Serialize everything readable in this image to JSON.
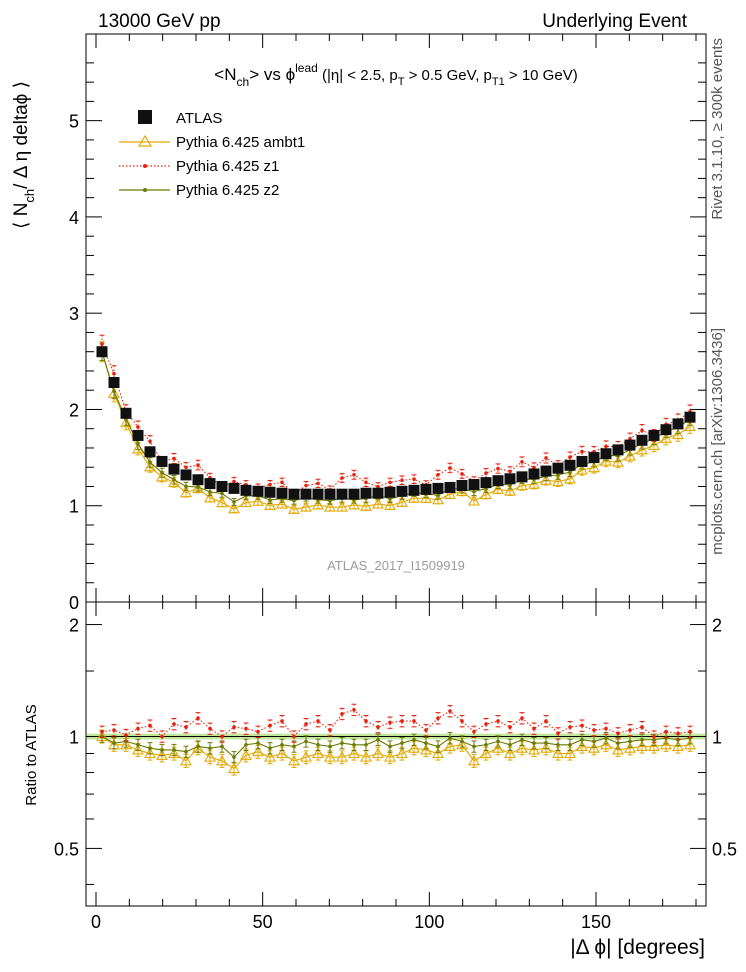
{
  "header": {
    "left": "13000 GeV pp",
    "right": "Underlying Event"
  },
  "side": {
    "top": "Rivet 3.1.10, ≥ 300k events",
    "bottom": "mcplots.cern.ch [arXiv:1306.3436]"
  },
  "chart_data": {
    "type": "scatter",
    "title_main": "<N",
    "title_ch": "ch",
    "title_vs": "> vs ϕ",
    "title_lead": "lead",
    "title_cuts1": " (|η| < 2.5, p",
    "title_T": "T",
    "title_cuts2": " > 0.5 GeV, p",
    "title_T1": "T1",
    "title_cuts3": " > 10 GeV)",
    "watermark": "ATLAS_2017_I1509919",
    "xlabel": "|Δ ϕ| [degrees]",
    "ylabel_main": "⟨ N",
    "ylabel_sub": "ch",
    "ylabel_rest": "/ Δ η deltaϕ ⟩",
    "ratio_ylabel": "Ratio to ATLAS",
    "xlim": [
      -3,
      183
    ],
    "ylim": [
      0,
      5.9
    ],
    "ratio_ylim": [
      0.35,
      2.3
    ],
    "x_ticks": [
      "0",
      "50",
      "100",
      "150"
    ],
    "y_ticks": [
      "0",
      "1",
      "2",
      "3",
      "4",
      "5"
    ],
    "ratio_ticks": [
      "0.5",
      "1",
      "2"
    ],
    "legend": [
      "ATLAS",
      "Pythia 6.425 ambt1",
      "Pythia 6.425 z1",
      "Pythia 6.425 z2"
    ],
    "x": [
      1.8,
      5.4,
      9,
      12.6,
      16.2,
      19.8,
      23.4,
      27,
      30.6,
      34.2,
      37.8,
      41.4,
      45,
      48.6,
      52.2,
      55.8,
      59.4,
      63,
      66.6,
      70.2,
      73.8,
      77.4,
      81,
      84.6,
      88.2,
      91.8,
      95.4,
      99,
      102.6,
      106.2,
      109.8,
      113.4,
      117,
      120.6,
      124.2,
      127.8,
      131.4,
      135,
      138.6,
      142.2,
      145.8,
      149.4,
      153,
      156.6,
      160.2,
      163.8,
      167.4,
      171,
      174.6,
      178.2
    ],
    "atlas": [
      2.6,
      2.28,
      1.96,
      1.73,
      1.56,
      1.46,
      1.38,
      1.32,
      1.27,
      1.23,
      1.2,
      1.18,
      1.16,
      1.15,
      1.14,
      1.13,
      1.12,
      1.12,
      1.12,
      1.12,
      1.12,
      1.12,
      1.13,
      1.13,
      1.14,
      1.15,
      1.16,
      1.17,
      1.18,
      1.19,
      1.21,
      1.22,
      1.24,
      1.26,
      1.28,
      1.3,
      1.33,
      1.36,
      1.39,
      1.42,
      1.46,
      1.5,
      1.54,
      1.58,
      1.63,
      1.68,
      1.73,
      1.79,
      1.85,
      1.92
    ],
    "series": [
      {
        "name": "Pythia 6.425 ambt1",
        "color": "#e3a800",
        "ratio": [
          1.0,
          0.95,
          0.95,
          0.92,
          0.9,
          0.89,
          0.9,
          0.86,
          0.93,
          0.88,
          0.86,
          0.82,
          0.89,
          0.91,
          0.88,
          0.9,
          0.86,
          0.88,
          0.9,
          0.88,
          0.88,
          0.9,
          0.88,
          0.9,
          0.88,
          0.9,
          0.93,
          0.92,
          0.9,
          0.94,
          0.95,
          0.86,
          0.9,
          0.93,
          0.9,
          0.93,
          0.92,
          0.93,
          0.9,
          0.9,
          0.94,
          0.93,
          0.95,
          0.92,
          0.93,
          0.94,
          0.94,
          0.95,
          0.94,
          0.95
        ]
      },
      {
        "name": "Pythia 6.425 z1",
        "color": "#e8200c",
        "ratio": [
          1.03,
          1.04,
          1.01,
          1.05,
          1.07,
          1.0,
          1.08,
          1.06,
          1.12,
          1.05,
          1.0,
          1.06,
          1.05,
          1.03,
          1.07,
          1.1,
          1.0,
          1.08,
          1.1,
          1.04,
          1.15,
          1.18,
          1.1,
          1.06,
          1.09,
          1.1,
          1.1,
          1.04,
          1.12,
          1.17,
          1.1,
          1.03,
          1.08,
          1.1,
          1.06,
          1.12,
          1.05,
          1.1,
          1.02,
          1.06,
          1.07,
          1.04,
          1.05,
          1.02,
          1.04,
          1.06,
          1.0,
          1.03,
          1.02,
          1.03
        ]
      },
      {
        "name": "Pythia 6.425 z2",
        "color": "#6b7a00",
        "ratio": [
          1.0,
          0.96,
          0.97,
          0.95,
          0.93,
          0.92,
          0.92,
          0.91,
          0.94,
          0.93,
          0.94,
          0.88,
          0.95,
          0.96,
          0.93,
          0.95,
          0.94,
          0.97,
          0.95,
          0.94,
          0.96,
          0.95,
          0.95,
          0.98,
          0.94,
          0.96,
          0.98,
          0.96,
          0.94,
          0.99,
          0.97,
          0.94,
          0.95,
          0.97,
          0.95,
          0.98,
          0.96,
          0.96,
          0.95,
          0.95,
          0.98,
          0.97,
          0.99,
          0.96,
          0.97,
          0.98,
          0.98,
          0.99,
          0.98,
          0.99
        ]
      }
    ]
  }
}
